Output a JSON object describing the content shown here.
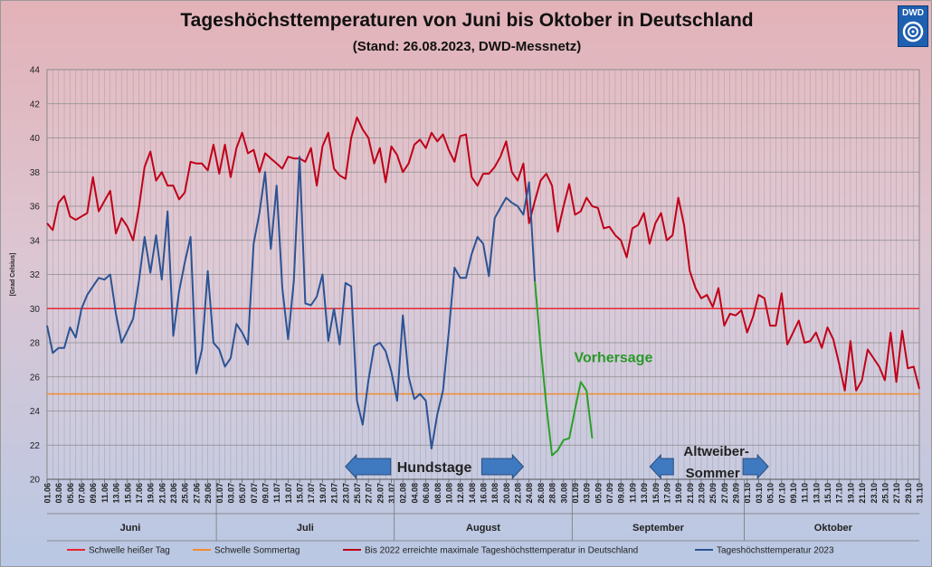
{
  "header": {
    "title": "Tageshöchsttemperaturen von Juni bis Oktober in Deutschland",
    "subtitle": "(Stand: 26.08.2023, DWD-Messnetz)",
    "logo_text": "DWD"
  },
  "chart_data": {
    "type": "line",
    "ylabel": "[Grad Celsius]",
    "ylim": [
      20,
      44
    ],
    "yticks": [
      20,
      22,
      24,
      26,
      28,
      30,
      32,
      34,
      36,
      38,
      40,
      42,
      44
    ],
    "grid": true,
    "start_date": "01.06",
    "xtick_labels": [
      "01.06",
      "03.06",
      "05.06",
      "07.06",
      "09.06",
      "11.06",
      "13.06",
      "15.06",
      "17.06",
      "19.06",
      "21.06",
      "23.06",
      "25.06",
      "27.06",
      "29.06",
      "01.07",
      "03.07",
      "05.07",
      "07.07",
      "09.07",
      "11.07",
      "13.07",
      "15.07",
      "17.07",
      "19.07",
      "21.07",
      "23.07",
      "25.07",
      "27.07",
      "29.07",
      "31.07",
      "02.08",
      "04.08",
      "06.08",
      "08.08",
      "10.08",
      "12.08",
      "14.08",
      "16.08",
      "18.08",
      "20.08",
      "22.08",
      "24.08",
      "26.08",
      "28.08",
      "30.08",
      "01.09",
      "03.09",
      "05.09",
      "07.09",
      "09.09",
      "11.09",
      "13.09",
      "15.09",
      "17.09",
      "19.09",
      "21.09",
      "23.09",
      "25.09",
      "27.09",
      "29.09",
      "01.10",
      "03.10",
      "05.10",
      "07.10",
      "09.10",
      "11.10",
      "13.10",
      "15.10",
      "17.10",
      "19.10",
      "21.10",
      "23.10",
      "25.10",
      "27.10",
      "29.10",
      "31.10"
    ],
    "months": [
      {
        "label": "Juni",
        "start": "01.06",
        "end": "30.06"
      },
      {
        "label": "Juli",
        "start": "01.07",
        "end": "31.07"
      },
      {
        "label": "August",
        "start": "01.08",
        "end": "31.08"
      },
      {
        "label": "September",
        "start": "01.09",
        "end": "30.09"
      },
      {
        "label": "Oktober",
        "start": "01.10",
        "end": "31.10"
      }
    ],
    "thresholds": [
      {
        "name": "Schwelle heißer Tag",
        "value": 30,
        "color": "#e8262e"
      },
      {
        "name": "Schwelle Sommertag",
        "value": 25,
        "color": "#f08c30"
      }
    ],
    "series": [
      {
        "name": "Bis 2022 erreichte maximale Tageshöchsttemperatur in Deutschland",
        "color": "#c00018",
        "values": [
          35.0,
          34.6,
          36.2,
          36.6,
          35.4,
          35.2,
          35.4,
          35.6,
          37.7,
          35.7,
          36.3,
          36.9,
          34.4,
          35.3,
          34.8,
          34.0,
          35.9,
          38.3,
          39.2,
          37.5,
          38.0,
          37.2,
          37.2,
          36.4,
          36.8,
          38.6,
          38.5,
          38.5,
          38.1,
          39.6,
          37.9,
          39.6,
          37.7,
          39.4,
          40.3,
          39.1,
          39.3,
          38.0,
          39.1,
          38.8,
          38.5,
          38.2,
          38.9,
          38.8,
          38.8,
          38.6,
          39.4,
          37.2,
          39.5,
          40.3,
          38.2,
          37.8,
          37.6,
          40.0,
          41.2,
          40.5,
          40.0,
          38.5,
          39.4,
          37.4,
          39.5,
          39.0,
          38.0,
          38.5,
          39.6,
          39.9,
          39.4,
          40.3,
          39.8,
          40.2,
          39.3,
          38.6,
          40.1,
          40.2,
          37.7,
          37.2,
          37.9,
          37.9,
          38.3,
          38.9,
          39.8,
          38.0,
          37.5,
          38.5,
          35.0,
          36.3,
          37.5,
          37.9,
          37.2,
          34.5,
          36.0,
          37.3,
          35.5,
          35.7,
          36.5,
          36.0,
          35.9,
          34.7,
          34.8,
          34.3,
          34.0,
          33.0,
          34.7,
          34.9,
          35.6,
          33.8,
          35.0,
          35.6,
          34.0,
          34.3,
          36.5,
          34.9,
          32.2,
          31.2,
          30.6,
          30.8,
          30.1,
          31.2,
          29.0,
          29.7,
          29.6,
          29.9,
          28.6,
          29.5,
          30.8,
          30.6,
          29.0,
          29.0,
          30.9,
          27.9,
          28.6,
          29.3,
          28.0,
          28.1,
          28.6,
          27.7,
          28.9,
          28.2,
          26.8,
          25.2,
          28.1,
          25.2,
          25.8,
          27.6,
          27.1,
          26.6,
          25.8,
          28.6,
          25.7,
          28.7,
          26.5,
          26.6,
          25.3
        ]
      },
      {
        "name": "Tageshöchsttemperatur 2023",
        "color": "#2b5394",
        "values": [
          29.0,
          27.4,
          27.7,
          27.7,
          28.9,
          28.3,
          30.0,
          30.8,
          31.3,
          31.8,
          31.7,
          32.0,
          29.7,
          28.0,
          28.7,
          29.4,
          31.6,
          34.2,
          32.1,
          34.3,
          31.7,
          35.7,
          28.4,
          31.0,
          32.7,
          34.2,
          26.2,
          27.6,
          32.2,
          28.0,
          27.6,
          26.6,
          27.1,
          29.1,
          28.6,
          27.9,
          33.8,
          35.6,
          38.0,
          33.5,
          37.2,
          31.2,
          28.2,
          31.6,
          38.9,
          30.3,
          30.2,
          30.7,
          32.0,
          28.1,
          30.0,
          27.9,
          31.5,
          31.3,
          24.6,
          23.2,
          25.8,
          27.8,
          28.0,
          27.5,
          26.3,
          24.6,
          29.6,
          26.0,
          24.7,
          25.0,
          24.6,
          21.8,
          23.8,
          25.2,
          28.6,
          32.4,
          31.8,
          31.8,
          33.2,
          34.2,
          33.8,
          31.9,
          35.3,
          35.9,
          36.5,
          36.2,
          36.0,
          35.5,
          37.4,
          31.6
        ]
      },
      {
        "name": "Vorhersage",
        "color": "#2aa02a",
        "start_index": 85,
        "values": [
          31.6,
          27.8,
          24.3,
          21.4,
          21.7,
          22.3,
          22.4,
          24.1,
          25.7,
          25.2,
          22.4
        ]
      }
    ],
    "annotations": [
      {
        "text": "Vorhersage",
        "color": "#2a9a2a"
      },
      {
        "text": "Hundstage",
        "from": "23.07",
        "to": "23.08"
      },
      {
        "text": "Altweiber-",
        "line2": "Sommer",
        "from": "15.09",
        "to": "05.10"
      }
    ],
    "legend_position": "bottom"
  }
}
